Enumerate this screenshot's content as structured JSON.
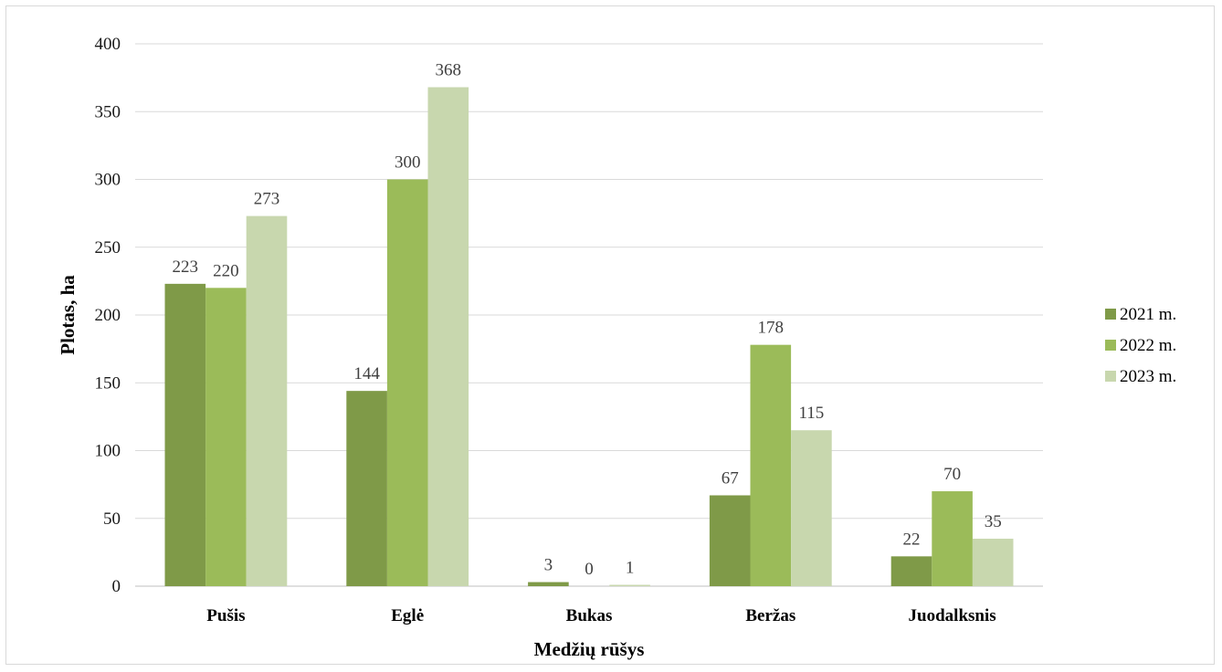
{
  "chart_data": {
    "type": "bar",
    "title": "",
    "xlabel": "Medžių rūšys",
    "ylabel": "Plotas, ha",
    "ylim": [
      0,
      400
    ],
    "yticks": [
      0,
      50,
      100,
      150,
      200,
      250,
      300,
      350,
      400
    ],
    "grid": true,
    "legend_position": "right",
    "categories": [
      "Pušis",
      "Eglė",
      "Bukas",
      "Beržas",
      "Juodalksnis"
    ],
    "series": [
      {
        "name": "2021 m.",
        "color": "#7f9a48",
        "values": [
          223,
          144,
          3,
          67,
          22
        ]
      },
      {
        "name": "2022 m.",
        "color": "#9bbb59",
        "values": [
          220,
          300,
          0,
          178,
          70
        ]
      },
      {
        "name": "2023 m.",
        "color": "#c8d7ae",
        "values": [
          273,
          368,
          1,
          115,
          35
        ]
      }
    ]
  }
}
